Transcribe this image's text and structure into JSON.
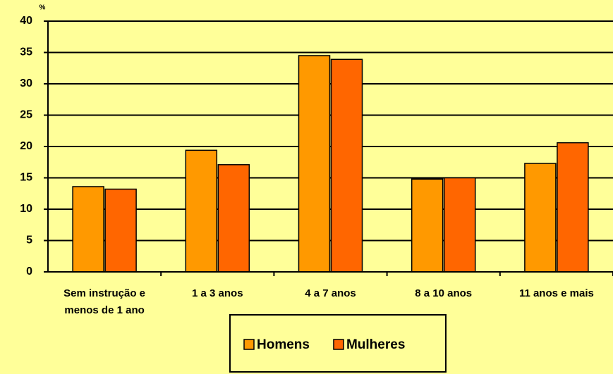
{
  "chart_data": {
    "type": "bar",
    "y_label": "%",
    "categories": [
      "Sem instrução e menos de 1 ano",
      "1 a  3 anos",
      "4 a  7 anos",
      "8 a 10 anos",
      "11 anos e mais"
    ],
    "series": [
      {
        "name": "Homens",
        "color": "#ff9900",
        "values": [
          13.6,
          19.4,
          34.5,
          14.8,
          17.3
        ]
      },
      {
        "name": "Mulheres",
        "color": "#ff6600",
        "values": [
          13.2,
          17.1,
          33.9,
          15.0,
          20.6
        ]
      }
    ],
    "ylim": [
      0,
      40
    ],
    "yticks": [
      0,
      5,
      10,
      15,
      20,
      25,
      30,
      35,
      40
    ],
    "grid": true,
    "legend": "bottom"
  }
}
